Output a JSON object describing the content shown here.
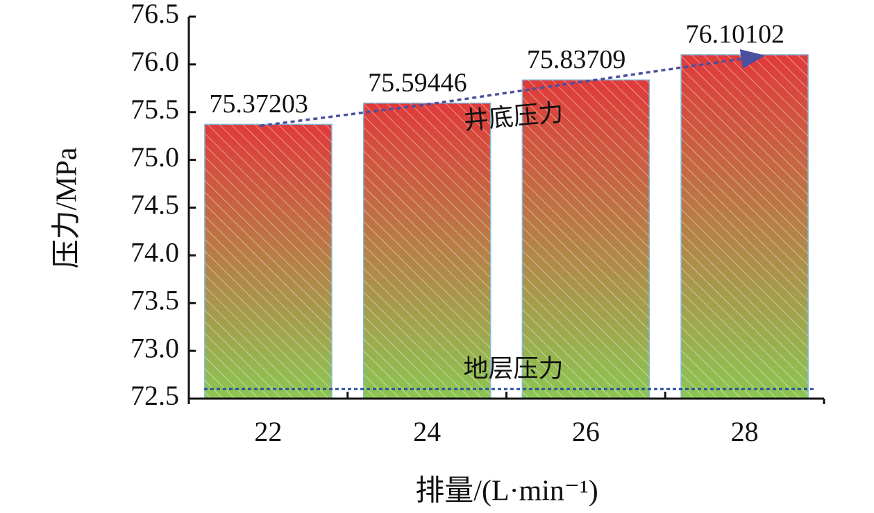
{
  "chart_data": {
    "type": "bar",
    "x_label": "排量/(L·min⁻¹)",
    "y_label": "压力/MPa",
    "categories": [
      "22",
      "24",
      "26",
      "28"
    ],
    "values": [
      75.37203,
      75.59446,
      75.83709,
      76.10102
    ],
    "ylim": [
      72.5,
      76.5
    ],
    "yticks": [
      {
        "value": 72.5,
        "label": "72.5"
      },
      {
        "value": 73,
        "label": "73.0"
      },
      {
        "value": 73.5,
        "label": "73.5"
      },
      {
        "value": 74,
        "label": "74.0"
      },
      {
        "value": 74.5,
        "label": "74.5"
      },
      {
        "value": 75,
        "label": "75.0"
      },
      {
        "value": 75.5,
        "label": "75.5"
      },
      {
        "value": 76,
        "label": "76.0"
      },
      {
        "value": 76.5,
        "label": "76.5"
      }
    ],
    "gradient_colors": [
      "#e03a3a",
      "#8cc653"
    ],
    "trend": {
      "label": "井底压力",
      "color": "#4b4fa0"
    },
    "reference_line": {
      "label": "地层压力",
      "value": 72.6,
      "color": "#2a4fa0"
    }
  }
}
